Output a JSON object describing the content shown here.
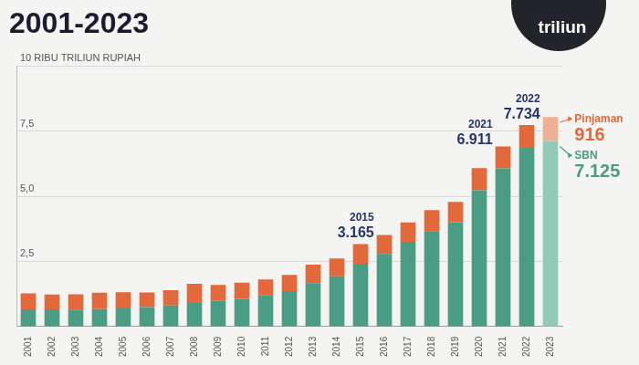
{
  "chart_data": {
    "type": "bar",
    "title": "2001-2023",
    "illustration_text": "triliun",
    "stacked": true,
    "grid": true,
    "categories": [
      "2001",
      "2002",
      "2003",
      "2004",
      "2005",
      "2006",
      "2007",
      "2008",
      "2009",
      "2010",
      "2011",
      "2012",
      "2013",
      "2014",
      "2015",
      "2016",
      "2017",
      "2018",
      "2019",
      "2020",
      "2021",
      "2022",
      "2023"
    ],
    "series": [
      {
        "name": "SBN",
        "colors": [
          "#4a9d84",
          "#4a9d84",
          "#4a9d84",
          "#4a9d84",
          "#4a9d84",
          "#4a9d84",
          "#4a9d84",
          "#4a9d84",
          "#4a9d84",
          "#4a9d84",
          "#4a9d84",
          "#4a9d84",
          "#4a9d84",
          "#4a9d84",
          "#4a9d84",
          "#4a9d84",
          "#4a9d84",
          "#4a9d84",
          "#4a9d84",
          "#4a9d84",
          "#4a9d84",
          "#4a9d84",
          "#93c9b8"
        ],
        "values": [
          0.659,
          0.655,
          0.65,
          0.662,
          0.693,
          0.743,
          0.803,
          0.906,
          0.978,
          1.064,
          1.188,
          1.362,
          1.661,
          1.927,
          2.41,
          2.782,
          3.253,
          3.661,
          4.008,
          5.23,
          6.069,
          6.864,
          7.125
        ],
        "value_labels": [
          null,
          null,
          null,
          null,
          null,
          null,
          null,
          null,
          null,
          null,
          null,
          null,
          null,
          null,
          null,
          null,
          null,
          null,
          null,
          null,
          null,
          null,
          "7.125"
        ]
      },
      {
        "name": "Pinjaman",
        "colors": [
          "#e3683c",
          "#e3683c",
          "#e3683c",
          "#e3683c",
          "#e3683c",
          "#e3683c",
          "#e3683c",
          "#e3683c",
          "#e3683c",
          "#e3683c",
          "#e3683c",
          "#e3683c",
          "#e3683c",
          "#e3683c",
          "#e3683c",
          "#e3683c",
          "#e3683c",
          "#e3683c",
          "#e3683c",
          "#e3683c",
          "#e3683c",
          "#e3683c",
          "#f0b096"
        ],
        "values": [
          0.614,
          0.57,
          0.582,
          0.637,
          0.62,
          0.559,
          0.586,
          0.731,
          0.613,
          0.617,
          0.621,
          0.615,
          0.714,
          0.681,
          0.755,
          0.734,
          0.742,
          0.805,
          0.778,
          0.85,
          0.842,
          0.87,
          0.916
        ],
        "value_labels": [
          null,
          null,
          null,
          null,
          null,
          null,
          null,
          null,
          null,
          null,
          null,
          null,
          null,
          null,
          null,
          null,
          null,
          null,
          null,
          null,
          null,
          null,
          "916"
        ]
      }
    ],
    "annotations": [
      {
        "category": "2015",
        "text": "2015",
        "value": 3.165,
        "label": "3.165"
      },
      {
        "category": "2021",
        "text": "2021",
        "value": 6.911,
        "label": "6.911"
      },
      {
        "category": "2022",
        "text": "2022",
        "value": 7.734,
        "label": "7.734"
      }
    ],
    "ylim": [
      0,
      10
    ],
    "yticks": [
      {
        "value": 2.5,
        "label": "2,5"
      },
      {
        "value": 5,
        "label": "5,0"
      },
      {
        "value": 7.5,
        "label": "7,5"
      },
      {
        "value": 10,
        "label": "10 RIBU TRILIUN RUPIAH"
      }
    ]
  }
}
